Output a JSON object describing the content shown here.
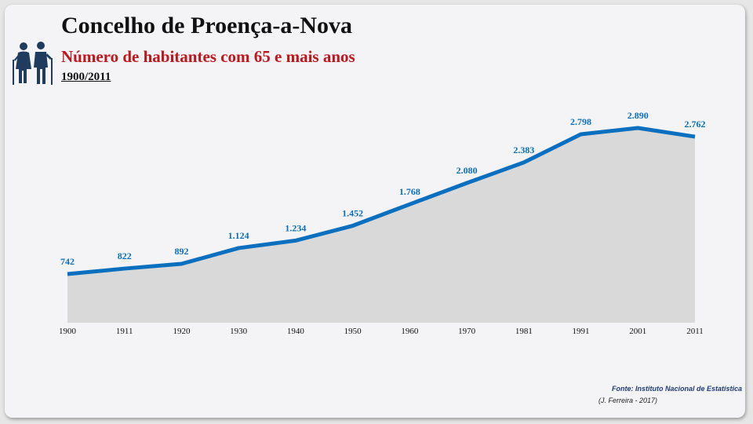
{
  "header": {
    "title": "Concelho de Proença-a-Nova",
    "subtitle": "Número de habitantes com 65 e mais anos",
    "period": "1900/2011"
  },
  "footer": {
    "source": "Fonte: Instituto Nacional de Estatística",
    "author": "(J. Ferreira - 2017)"
  },
  "icons": {
    "header": "elderly-couple-icon"
  },
  "colors": {
    "line": "#0a6fbe",
    "area": "#d9d9d9",
    "labels": "#0a6fbe",
    "subtitle": "#c0161c"
  },
  "chart_data": {
    "type": "area",
    "categories": [
      "1900",
      "1911",
      "1920",
      "1930",
      "1940",
      "1950",
      "1960",
      "1970",
      "1981",
      "1991",
      "2001",
      "2011"
    ],
    "values": [
      742,
      822,
      892,
      1124,
      1234,
      1452,
      1768,
      2080,
      2383,
      2798,
      2890,
      2762
    ],
    "data_labels": [
      "742",
      "822",
      "892",
      "1.124",
      "1.234",
      "1.452",
      "1.768",
      "2.080",
      "2.383",
      "2.798",
      "2.890",
      "2.762"
    ],
    "grid": false,
    "legend": "none",
    "ylim": [
      0,
      3000
    ]
  }
}
